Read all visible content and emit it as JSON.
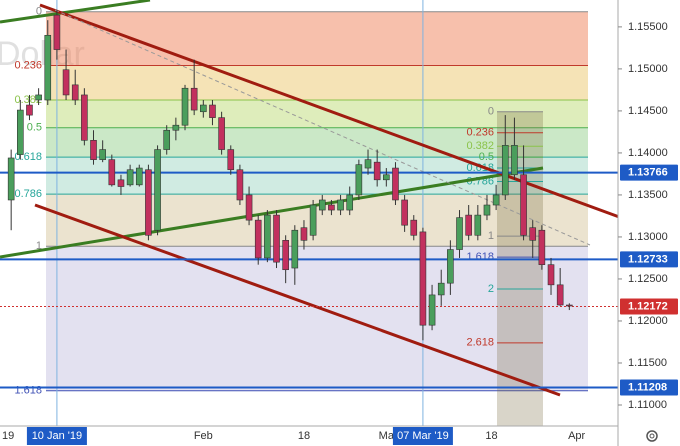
{
  "chart_data": {
    "type": "candlestick",
    "watermark": "Dollar",
    "x": [
      1,
      2,
      3,
      4,
      5,
      6,
      7,
      8,
      9,
      10,
      11,
      12,
      13,
      14,
      15,
      16,
      17,
      18,
      19,
      20,
      21,
      22,
      23,
      24,
      25,
      26,
      27,
      28,
      29,
      30,
      31,
      32,
      33,
      34,
      35,
      36,
      37,
      38,
      39,
      40,
      41,
      42,
      43,
      44,
      45,
      46,
      47,
      48,
      49,
      50,
      51,
      52,
      53,
      54,
      55,
      56,
      57,
      58,
      59,
      60,
      61,
      62
    ],
    "open": [
      1.1344,
      1.1398,
      1.1457,
      1.1463,
      1.1463,
      1.1564,
      1.1499,
      1.1481,
      1.1469,
      1.1415,
      1.1392,
      1.1392,
      1.1368,
      1.1362,
      1.1362,
      1.138,
      1.1308,
      1.1404,
      1.1427,
      1.1433,
      1.1477,
      1.1449,
      1.1457,
      1.1442,
      1.1404,
      1.138,
      1.135,
      1.132,
      1.1275,
      1.1326,
      1.1296,
      1.1263,
      1.1311,
      1.1302,
      1.1332,
      1.1338,
      1.1332,
      1.1332,
      1.135,
      1.1382,
      1.1389,
      1.1368,
      1.1382,
      1.1344,
      1.132,
      1.1306,
      1.1195,
      1.1231,
      1.1245,
      1.1285,
      1.1326,
      1.1302,
      1.1326,
      1.1338,
      1.135,
      1.1374,
      1.1374,
      1.1311,
      1.1308,
      1.1267,
      1.1243,
      1.1219
    ],
    "high": [
      1.1404,
      1.1463,
      1.1469,
      1.1477,
      1.1558,
      1.157,
      1.1523,
      1.1499,
      1.1477,
      1.1427,
      1.1415,
      1.1398,
      1.1374,
      1.1386,
      1.1386,
      1.1386,
      1.1409,
      1.1433,
      1.1442,
      1.1481,
      1.1511,
      1.1463,
      1.1463,
      1.1449,
      1.1409,
      1.1386,
      1.136,
      1.1326,
      1.1332,
      1.1332,
      1.1302,
      1.1314,
      1.132,
      1.1344,
      1.135,
      1.1344,
      1.135,
      1.136,
      1.1392,
      1.1404,
      1.1404,
      1.1382,
      1.1389,
      1.135,
      1.1326,
      1.1311,
      1.1243,
      1.1261,
      1.1296,
      1.1332,
      1.1338,
      1.1338,
      1.135,
      1.1362,
      1.1445,
      1.1442,
      1.1409,
      1.132,
      1.1314,
      1.1275,
      1.1263,
      1.1221
    ],
    "low": [
      1.1308,
      1.1392,
      1.1439,
      1.1457,
      1.1457,
      1.1511,
      1.1463,
      1.1457,
      1.1409,
      1.1386,
      1.1389,
      1.136,
      1.135,
      1.136,
      1.136,
      1.1296,
      1.1302,
      1.1398,
      1.1415,
      1.1427,
      1.1445,
      1.1442,
      1.1433,
      1.1398,
      1.1374,
      1.1338,
      1.1314,
      1.1267,
      1.127,
      1.1263,
      1.1245,
      1.1243,
      1.1285,
      1.1296,
      1.1326,
      1.1326,
      1.1326,
      1.1326,
      1.1344,
      1.1374,
      1.136,
      1.136,
      1.1338,
      1.1306,
      1.1296,
      1.1177,
      1.1189,
      1.1218,
      1.1231,
      1.1275,
      1.1296,
      1.1296,
      1.132,
      1.1332,
      1.1344,
      1.1368,
      1.1296,
      1.1275,
      1.1261,
      1.1231,
      1.1218,
      1.1213
    ],
    "close": [
      1.1394,
      1.1451,
      1.1445,
      1.1469,
      1.154,
      1.1523,
      1.1469,
      1.1463,
      1.1415,
      1.1392,
      1.1404,
      1.1362,
      1.136,
      1.138,
      1.1382,
      1.1302,
      1.1404,
      1.1427,
      1.1433,
      1.1477,
      1.1451,
      1.1457,
      1.1442,
      1.1404,
      1.138,
      1.1344,
      1.132,
      1.1275,
      1.1326,
      1.127,
      1.1261,
      1.1308,
      1.1296,
      1.1338,
      1.1344,
      1.1332,
      1.1344,
      1.135,
      1.1386,
      1.1392,
      1.1368,
      1.1374,
      1.1344,
      1.1314,
      1.1302,
      1.1195,
      1.1231,
      1.1245,
      1.1285,
      1.1323,
      1.1302,
      1.1326,
      1.1338,
      1.135,
      1.1409,
      1.1409,
      1.1302,
      1.1296,
      1.1267,
      1.1243,
      1.1219,
      1.1218
    ],
    "up_color": "#4a9e5c",
    "down_color": "#c2305e",
    "xlim": [
      -0.22,
      67.32
    ],
    "ylim": [
      1.1075,
      1.1582
    ],
    "xticks": [
      {
        "value": 0,
        "label": "19"
      },
      {
        "value": 22,
        "label": "Feb"
      },
      {
        "value": 33,
        "label": "18"
      },
      {
        "value": 42,
        "label": "Ma"
      },
      {
        "value": 53.5,
        "label": "18"
      },
      {
        "value": 62.8,
        "label": "Apr"
      }
    ],
    "x_markers": [
      {
        "value": 6,
        "label": "10 Jan '19"
      },
      {
        "value": 46,
        "label": "07 Mar '19"
      }
    ],
    "marker_color": "#1e5bc6",
    "yticks": [
      {
        "value": 1.155,
        "label": "1.15500"
      },
      {
        "value": 1.15,
        "label": "1.15000"
      },
      {
        "value": 1.145,
        "label": "1.14500"
      },
      {
        "value": 1.14,
        "label": "1.14000"
      },
      {
        "value": 1.135,
        "label": "1.13500"
      },
      {
        "value": 1.13,
        "label": "1.13000"
      },
      {
        "value": 1.125,
        "label": "1.12500"
      },
      {
        "value": 1.12,
        "label": "1.12000"
      },
      {
        "value": 1.115,
        "label": "1.11500"
      },
      {
        "value": 1.11,
        "label": "1.11000"
      }
    ],
    "price_levels": [
      {
        "value": 1.13766,
        "color": "#1e5bc6"
      },
      {
        "value": 1.12733,
        "color": "#1e5bc6"
      },
      {
        "value": 1.12172,
        "color": "#d03030"
      },
      {
        "value": 1.11208,
        "color": "#1e5bc6"
      }
    ],
    "fib_outer": {
      "ratios": [
        0,
        0.236,
        0.382,
        0.5,
        0.618,
        0.786,
        1,
        1.618
      ],
      "prices": [
        1.1568,
        1.1504,
        1.1463,
        1.143,
        1.1395,
        1.1351,
        1.1289,
        1.1117
      ],
      "line_colors": [
        "#888888",
        "#c0392b",
        "#8bc34a",
        "#4caf50",
        "#26a69a",
        "#26a69a",
        "#888888",
        "#3f51b5"
      ],
      "band_colors": [
        "rgba(240,130,90,0.5)",
        "rgba(235,200,110,0.5)",
        "rgba(190,220,120,0.5)",
        "rgba(140,205,130,0.45)",
        "rgba(150,210,190,0.45)",
        "rgba(215,200,160,0.5)",
        "rgba(200,195,225,0.5)"
      ]
    },
    "fib_inner": {
      "ratios": [
        0,
        0.236,
        0.382,
        0.5,
        0.618,
        0.786,
        1,
        1.618,
        2,
        2.618
      ],
      "prices": [
        1.1449,
        1.1424,
        1.1408,
        1.1395,
        1.1382,
        1.1366,
        1.1301,
        1.1276,
        1.1238,
        1.1174
      ],
      "line_colors": [
        "#888888",
        "#c0392b",
        "#8bc34a",
        "#4caf50",
        "#26a69a",
        "#26a69a",
        "#888888",
        "#3f51b5",
        "#26a69a",
        "#c0392b"
      ],
      "band_color": "rgba(120,105,60,0.28)"
    }
  }
}
